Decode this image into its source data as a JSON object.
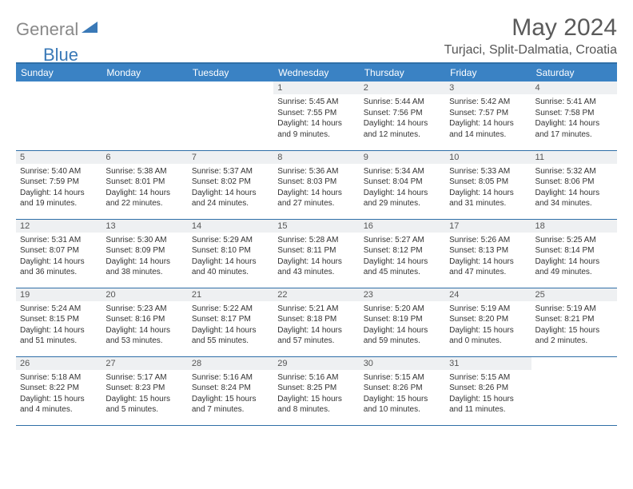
{
  "brand": {
    "gray": "General",
    "blue": "Blue"
  },
  "title": "May 2024",
  "location": "Turjaci, Split-Dalmatia, Croatia",
  "colors": {
    "header_bg": "#3a82c4",
    "header_text": "#ffffff",
    "rule": "#2f6fa7",
    "daynum_bg": "#eef0f2",
    "logo_gray": "#898989",
    "logo_blue": "#3a79b7"
  },
  "daysOfWeek": [
    "Sunday",
    "Monday",
    "Tuesday",
    "Wednesday",
    "Thursday",
    "Friday",
    "Saturday"
  ],
  "weeks": [
    [
      {
        "empty": true
      },
      {
        "empty": true
      },
      {
        "empty": true
      },
      {
        "n": "1",
        "sr": "5:45 AM",
        "ss": "7:55 PM",
        "dl": "14 hours and 9 minutes."
      },
      {
        "n": "2",
        "sr": "5:44 AM",
        "ss": "7:56 PM",
        "dl": "14 hours and 12 minutes."
      },
      {
        "n": "3",
        "sr": "5:42 AM",
        "ss": "7:57 PM",
        "dl": "14 hours and 14 minutes."
      },
      {
        "n": "4",
        "sr": "5:41 AM",
        "ss": "7:58 PM",
        "dl": "14 hours and 17 minutes."
      }
    ],
    [
      {
        "n": "5",
        "sr": "5:40 AM",
        "ss": "7:59 PM",
        "dl": "14 hours and 19 minutes."
      },
      {
        "n": "6",
        "sr": "5:38 AM",
        "ss": "8:01 PM",
        "dl": "14 hours and 22 minutes."
      },
      {
        "n": "7",
        "sr": "5:37 AM",
        "ss": "8:02 PM",
        "dl": "14 hours and 24 minutes."
      },
      {
        "n": "8",
        "sr": "5:36 AM",
        "ss": "8:03 PM",
        "dl": "14 hours and 27 minutes."
      },
      {
        "n": "9",
        "sr": "5:34 AM",
        "ss": "8:04 PM",
        "dl": "14 hours and 29 minutes."
      },
      {
        "n": "10",
        "sr": "5:33 AM",
        "ss": "8:05 PM",
        "dl": "14 hours and 31 minutes."
      },
      {
        "n": "11",
        "sr": "5:32 AM",
        "ss": "8:06 PM",
        "dl": "14 hours and 34 minutes."
      }
    ],
    [
      {
        "n": "12",
        "sr": "5:31 AM",
        "ss": "8:07 PM",
        "dl": "14 hours and 36 minutes."
      },
      {
        "n": "13",
        "sr": "5:30 AM",
        "ss": "8:09 PM",
        "dl": "14 hours and 38 minutes."
      },
      {
        "n": "14",
        "sr": "5:29 AM",
        "ss": "8:10 PM",
        "dl": "14 hours and 40 minutes."
      },
      {
        "n": "15",
        "sr": "5:28 AM",
        "ss": "8:11 PM",
        "dl": "14 hours and 43 minutes."
      },
      {
        "n": "16",
        "sr": "5:27 AM",
        "ss": "8:12 PM",
        "dl": "14 hours and 45 minutes."
      },
      {
        "n": "17",
        "sr": "5:26 AM",
        "ss": "8:13 PM",
        "dl": "14 hours and 47 minutes."
      },
      {
        "n": "18",
        "sr": "5:25 AM",
        "ss": "8:14 PM",
        "dl": "14 hours and 49 minutes."
      }
    ],
    [
      {
        "n": "19",
        "sr": "5:24 AM",
        "ss": "8:15 PM",
        "dl": "14 hours and 51 minutes."
      },
      {
        "n": "20",
        "sr": "5:23 AM",
        "ss": "8:16 PM",
        "dl": "14 hours and 53 minutes."
      },
      {
        "n": "21",
        "sr": "5:22 AM",
        "ss": "8:17 PM",
        "dl": "14 hours and 55 minutes."
      },
      {
        "n": "22",
        "sr": "5:21 AM",
        "ss": "8:18 PM",
        "dl": "14 hours and 57 minutes."
      },
      {
        "n": "23",
        "sr": "5:20 AM",
        "ss": "8:19 PM",
        "dl": "14 hours and 59 minutes."
      },
      {
        "n": "24",
        "sr": "5:19 AM",
        "ss": "8:20 PM",
        "dl": "15 hours and 0 minutes."
      },
      {
        "n": "25",
        "sr": "5:19 AM",
        "ss": "8:21 PM",
        "dl": "15 hours and 2 minutes."
      }
    ],
    [
      {
        "n": "26",
        "sr": "5:18 AM",
        "ss": "8:22 PM",
        "dl": "15 hours and 4 minutes."
      },
      {
        "n": "27",
        "sr": "5:17 AM",
        "ss": "8:23 PM",
        "dl": "15 hours and 5 minutes."
      },
      {
        "n": "28",
        "sr": "5:16 AM",
        "ss": "8:24 PM",
        "dl": "15 hours and 7 minutes."
      },
      {
        "n": "29",
        "sr": "5:16 AM",
        "ss": "8:25 PM",
        "dl": "15 hours and 8 minutes."
      },
      {
        "n": "30",
        "sr": "5:15 AM",
        "ss": "8:26 PM",
        "dl": "15 hours and 10 minutes."
      },
      {
        "n": "31",
        "sr": "5:15 AM",
        "ss": "8:26 PM",
        "dl": "15 hours and 11 minutes."
      },
      {
        "empty": true
      }
    ]
  ],
  "labels": {
    "sunrise": "Sunrise:",
    "sunset": "Sunset:",
    "daylight": "Daylight:"
  }
}
